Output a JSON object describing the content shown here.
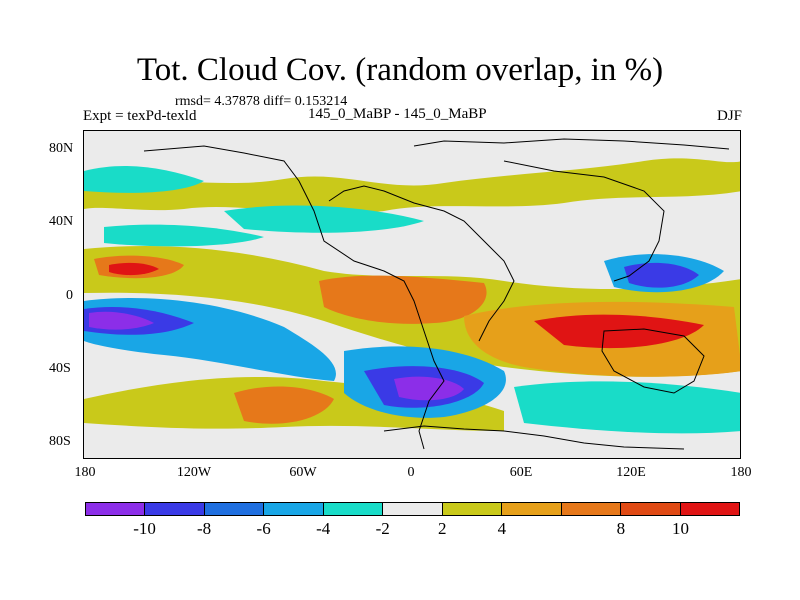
{
  "title": "Tot. Cloud Cov. (random overlap, in %)",
  "stats": "rmsd= 4.37878 diff= 0.153214",
  "expt": "Expt = texPd-texld",
  "subtitle": "145_0_MaBP - 145_0_MaBP",
  "season": "DJF",
  "map": {
    "projection": "cylindrical equidistant",
    "lon_range": [
      -180,
      180
    ],
    "lat_range": [
      -90,
      90
    ],
    "lat_labels": [
      "80N",
      "40N",
      "0",
      "40S",
      "80S"
    ],
    "lon_labels": [
      "180",
      "120W",
      "60W",
      "0",
      "60E",
      "120E",
      "180"
    ],
    "field": "difference in total cloud cover (%)",
    "coastlines": "black blocky outline"
  },
  "colorbar": {
    "colors": [
      "#8c2ee8",
      "#3a3ae6",
      "#1f6fe0",
      "#19a6e6",
      "#19dcc8",
      "#ebebeb",
      "#c9c91a",
      "#e6a01a",
      "#e6781a",
      "#e04a14",
      "#e01414"
    ],
    "labels": [
      "-10",
      "-8",
      "-6",
      "-4",
      "-2",
      "2",
      "4",
      "8",
      "10"
    ]
  }
}
